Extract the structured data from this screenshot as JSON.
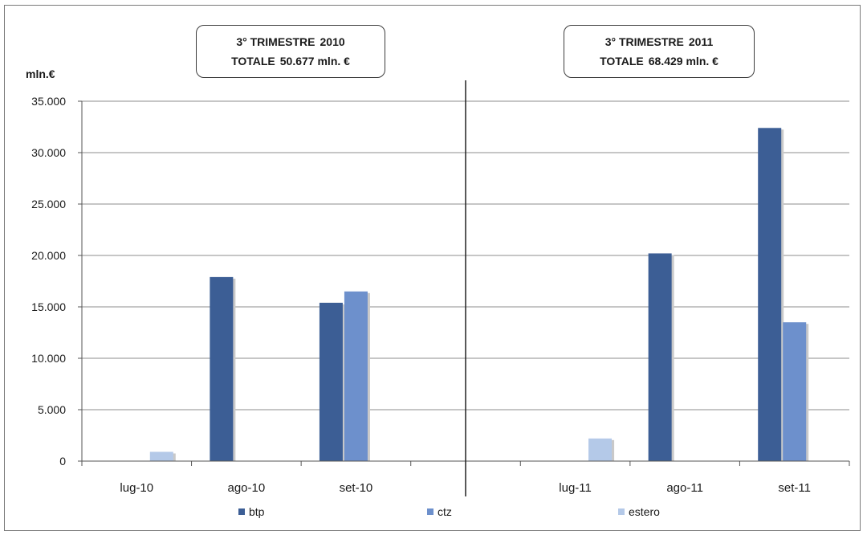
{
  "chart_data": {
    "type": "bar",
    "ylabel": "mln.€",
    "ylim": [
      0,
      35000
    ],
    "yticks": [
      "0",
      "5.000",
      "10.000",
      "15.000",
      "20.000",
      "25.000",
      "30.000",
      "35.000"
    ],
    "ytick_values": [
      0,
      5000,
      10000,
      15000,
      20000,
      25000,
      30000,
      35000
    ],
    "grid": true,
    "legend_position": "bottom",
    "categories": [
      "lug-10",
      "ago-10",
      "set-10",
      "",
      "lug-11",
      "ago-11",
      "set-11"
    ],
    "series": [
      {
        "name": "btp",
        "color": "#3c5e95",
        "values": [
          0,
          17900,
          15400,
          0,
          0,
          20200,
          32400
        ]
      },
      {
        "name": "ctz",
        "color": "#6d90cc",
        "values": [
          0,
          0,
          16500,
          0,
          0,
          0,
          13500
        ]
      },
      {
        "name": "estero",
        "color": "#b4c9e8",
        "values": [
          900,
          0,
          0,
          0,
          2200,
          0,
          0
        ]
      }
    ],
    "annotations": [
      {
        "line1_a": "3° TRIMESTRE",
        "line1_b": "2010",
        "line2_a": "TOTALE",
        "line2_b": "50.677 mln. €"
      },
      {
        "line1_a": "3° TRIMESTRE",
        "line1_b": "2011",
        "line2_a": "TOTALE",
        "line2_b": "68.429 mln. €"
      }
    ],
    "divider_after_category": 3
  }
}
